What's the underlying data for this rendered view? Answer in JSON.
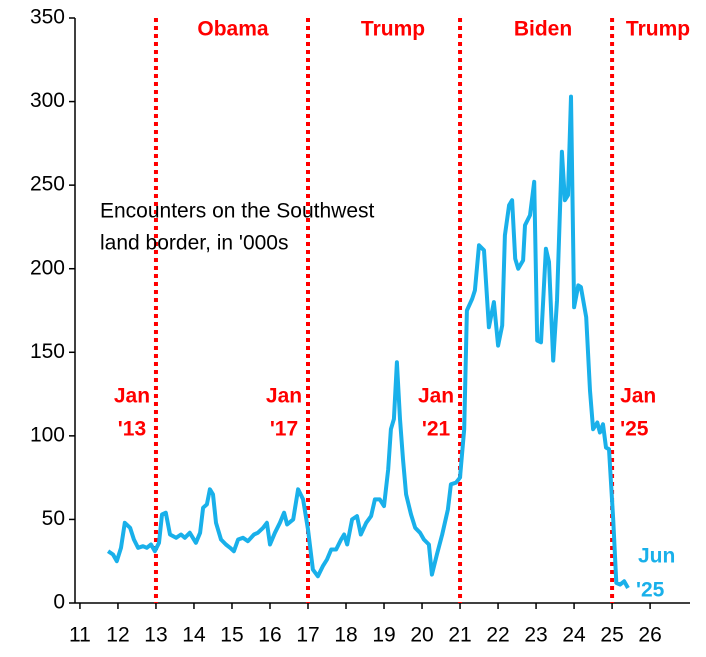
{
  "chart_data": {
    "type": "line",
    "note": [
      "Encounters on the Southwest",
      "land border, in '000s"
    ],
    "series": [
      {
        "name": "Encounters",
        "color": "#19b0ea",
        "x": [
          11.74,
          11.87,
          11.97,
          12.08,
          12.18,
          12.32,
          12.42,
          12.53,
          12.66,
          12.76,
          12.87,
          12.97,
          13.08,
          13.16,
          13.26,
          13.37,
          13.53,
          13.66,
          13.76,
          13.89,
          14.05,
          14.16,
          14.24,
          14.34,
          14.42,
          14.5,
          14.58,
          14.71,
          14.84,
          14.95,
          15.05,
          15.16,
          15.29,
          15.42,
          15.58,
          15.68,
          15.82,
          15.92,
          16.0,
          16.13,
          16.26,
          16.37,
          16.45,
          16.61,
          16.74,
          16.87,
          17.0,
          17.13,
          17.26,
          17.39,
          17.5,
          17.61,
          17.74,
          17.87,
          17.95,
          18.03,
          18.16,
          18.29,
          18.39,
          18.53,
          18.66,
          18.76,
          18.89,
          19.0,
          19.11,
          19.18,
          19.26,
          19.34,
          19.42,
          19.5,
          19.58,
          19.71,
          19.82,
          19.95,
          20.05,
          20.18,
          20.26,
          20.39,
          20.53,
          20.68,
          20.76,
          20.89,
          21.0,
          21.11,
          21.18,
          21.32,
          21.39,
          21.5,
          21.63,
          21.76,
          21.89,
          22.0,
          22.11,
          22.18,
          22.29,
          22.37,
          22.45,
          22.53,
          22.66,
          22.71,
          22.84,
          22.95,
          23.03,
          23.13,
          23.26,
          23.34,
          23.45,
          23.55,
          23.68,
          23.76,
          23.84,
          23.92,
          24.0,
          24.11,
          24.18,
          24.32,
          24.42,
          24.5,
          24.61,
          24.68,
          24.76,
          24.84,
          24.92,
          25.03,
          25.11,
          25.21,
          25.32,
          25.42
        ],
        "values": [
          31,
          29,
          25,
          33,
          48,
          45,
          38,
          33,
          34,
          33,
          35,
          31,
          36,
          53,
          54,
          41,
          39,
          41,
          39,
          42,
          36,
          42,
          57,
          59,
          68,
          65,
          48,
          38,
          35,
          33,
          31,
          38,
          39,
          37,
          41,
          42,
          45,
          48,
          35,
          42,
          48,
          54,
          47,
          50,
          68,
          62,
          44,
          20,
          16,
          22,
          26,
          32,
          32,
          38,
          41,
          35,
          50,
          52,
          41,
          48,
          52,
          62,
          62,
          58,
          80,
          104,
          110,
          144,
          110,
          86,
          65,
          53,
          45,
          42,
          38,
          35,
          17,
          29,
          41,
          56,
          71,
          72,
          75,
          104,
          175,
          182,
          187,
          214,
          211,
          165,
          180,
          154,
          166,
          220,
          238,
          241,
          206,
          200,
          205,
          226,
          232,
          252,
          157,
          156,
          212,
          204,
          145,
          181,
          270,
          241,
          244,
          303,
          177,
          190,
          189,
          171,
          127,
          104,
          108,
          102,
          107,
          93,
          92,
          50,
          12,
          11,
          13,
          9
        ]
      }
    ],
    "end_label": [
      "Jun",
      "'25"
    ],
    "transitions": [
      {
        "x": 13,
        "label": [
          "Jan",
          "'13"
        ]
      },
      {
        "x": 17,
        "label": [
          "Jan",
          "'17"
        ]
      },
      {
        "x": 21,
        "label": [
          "Jan",
          "'21"
        ]
      },
      {
        "x": 25,
        "label": [
          "Jan",
          "'25"
        ]
      }
    ],
    "terms": [
      "Obama",
      "Trump",
      "Biden",
      "Trump"
    ],
    "marker_color": "#ff0000",
    "xlim": [
      10.87,
      27.05
    ],
    "xticks": [
      11,
      12,
      13,
      14,
      15,
      16,
      17,
      18,
      19,
      20,
      21,
      22,
      23,
      24,
      25,
      26
    ],
    "ylim": [
      0,
      350
    ],
    "yticks": [
      0,
      50,
      100,
      150,
      200,
      250,
      300,
      350
    ]
  }
}
